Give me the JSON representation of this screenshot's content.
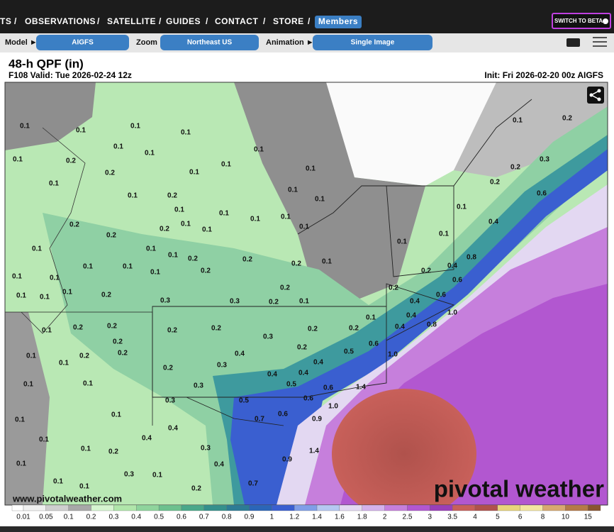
{
  "nav": {
    "items": [
      "TS",
      "OBSERVATIONS",
      "SATELLITE",
      "GUIDES",
      "CONTACT",
      "STORE"
    ],
    "separator": "/",
    "members": "Members",
    "beta": "SWITCH TO BETA"
  },
  "toolbar": {
    "model_label": "Model ►",
    "model": "AIGFS",
    "zoom_label": "Zoom ►",
    "zoom": "Northeast US",
    "animation_label": "Animation ►",
    "animation": "Single Image"
  },
  "header": {
    "title": "48-h QPF (in)",
    "valid": "F108 Valid: Tue 2026-02-24 12z",
    "init": "Init: Fri 2026-02-20 00z AIGFS"
  },
  "map": {
    "labels": [
      "0.1",
      "0.1",
      "0.1",
      "0.1",
      "0.2",
      "0.1",
      "0.1",
      "0.1",
      "0.2",
      "0.1",
      "0.1",
      "0.1",
      "0.1",
      "0.1",
      "0.1",
      "0.1",
      "0.1",
      "0.2",
      "0.1",
      "0.1",
      "0.1",
      "0.1",
      "0.1",
      "0.2",
      "0.2",
      "0.2",
      "0.1",
      "0.1",
      "0.1",
      "0.1",
      "0.1",
      "0.2",
      "0.2",
      "0.2",
      "0.1",
      "0.2",
      "0.1",
      "0.1",
      "0.1",
      "0.1",
      "0.1",
      "0.1",
      "0.1",
      "0.1",
      "0.2",
      "0.3",
      "0.3",
      "0.2",
      "0.2",
      "0.1",
      "0.1",
      "0.2",
      "0.2",
      "0.2",
      "0.2",
      "0.3",
      "0.2",
      "0.2",
      "0.1",
      "0.4",
      "0.4",
      "0.4",
      "0.2",
      "0.2",
      "0.4",
      "0.6",
      "0.6",
      "0.8",
      "1.0",
      "0.8",
      "0.4",
      "0.1",
      "0.1",
      "0.1",
      "0.1",
      "0.2",
      "0.3",
      "0.2",
      "0.2",
      "0.6",
      "0.2",
      "0.2",
      "0.2",
      "0.1",
      "0.1",
      "0.4",
      "0.2",
      "0.5",
      "0.6",
      "1.0",
      "0.4",
      "0.3",
      "0.2",
      "0.4",
      "0.4",
      "0.1",
      "0.1",
      "0.3",
      "0.5",
      "0.6",
      "1.4",
      "0.3",
      "0.5",
      "0.6",
      "1.0",
      "0.1",
      "0.1",
      "0.7",
      "0.6",
      "0.9",
      "0.4",
      "0.4",
      "0.1",
      "0.1",
      "0.2",
      "0.3",
      "1.4",
      "0.9",
      "0.1",
      "0.4",
      "0.3",
      "0.1",
      "0.1",
      "0.7",
      "0.1",
      "0.2"
    ],
    "website": "www.pivotalweather.com",
    "logo": "pivotal weather"
  },
  "colorbar": {
    "levels": [
      "0.01",
      "0.05",
      "0.1",
      "0.2",
      "0.3",
      "0.4",
      "0.5",
      "0.6",
      "0.7",
      "0.8",
      "0.9",
      "1",
      "1.2",
      "1.4",
      "1.6",
      "1.8",
      "2",
      "2.5",
      "3",
      "3.5",
      "4",
      "5",
      "6",
      "8",
      "10",
      "15"
    ]
  }
}
